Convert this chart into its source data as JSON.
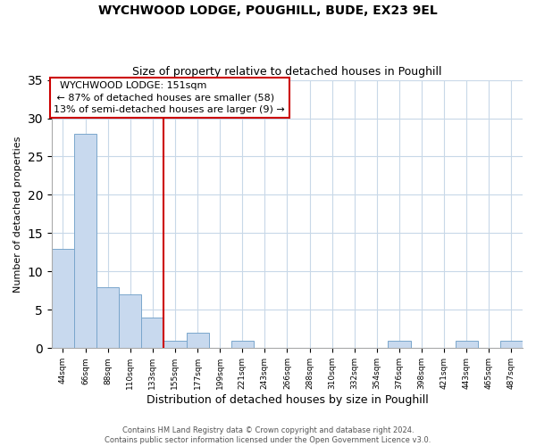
{
  "title": "WYCHWOOD LODGE, POUGHILL, BUDE, EX23 9EL",
  "subtitle": "Size of property relative to detached houses in Poughill",
  "xlabel": "Distribution of detached houses by size in Poughill",
  "ylabel": "Number of detached properties",
  "bin_labels": [
    "44sqm",
    "66sqm",
    "88sqm",
    "110sqm",
    "133sqm",
    "155sqm",
    "177sqm",
    "199sqm",
    "221sqm",
    "243sqm",
    "266sqm",
    "288sqm",
    "310sqm",
    "332sqm",
    "354sqm",
    "376sqm",
    "398sqm",
    "421sqm",
    "443sqm",
    "465sqm",
    "487sqm"
  ],
  "bar_heights": [
    13,
    28,
    8,
    7,
    4,
    1,
    2,
    0,
    1,
    0,
    0,
    0,
    0,
    0,
    0,
    1,
    0,
    0,
    1,
    0,
    1
  ],
  "bar_color": "#c8d9ee",
  "bar_edge_color": "#7aa6cc",
  "vline_color": "#cc0000",
  "ylim": [
    0,
    35
  ],
  "yticks": [
    0,
    5,
    10,
    15,
    20,
    25,
    30,
    35
  ],
  "annotation_title": "WYCHWOOD LODGE: 151sqm",
  "annotation_line1": "← 87% of detached houses are smaller (58)",
  "annotation_line2": "13% of semi-detached houses are larger (9) →",
  "annotation_box_color": "#ffffff",
  "annotation_box_edge": "#cc0000",
  "footer1": "Contains HM Land Registry data © Crown copyright and database right 2024.",
  "footer2": "Contains public sector information licensed under the Open Government Licence v3.0.",
  "background_color": "#ffffff",
  "grid_color": "#c8d8e8"
}
